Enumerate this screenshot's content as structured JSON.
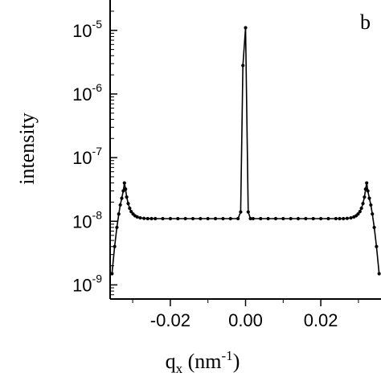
{
  "chart_data": {
    "type": "line",
    "panel_label": "b",
    "xlabel": {
      "base": "q",
      "sub": "x",
      "unit_open": " (nm",
      "unit_sup": "-1",
      "unit_close": ")"
    },
    "ylabel": "intensity",
    "xlim": [
      -0.036,
      0.036
    ],
    "ylim": [
      6e-10,
      3e-05
    ],
    "yscale": "log",
    "xticks": [
      {
        "value": -0.02,
        "label": "-0.02"
      },
      {
        "value": 0.0,
        "label": "0.00"
      },
      {
        "value": 0.02,
        "label": "0.02"
      }
    ],
    "yticks": [
      {
        "value": 1e-05,
        "base": "10",
        "exp": "-5"
      },
      {
        "value": 1e-06,
        "base": "10",
        "exp": "-6"
      },
      {
        "value": 1e-07,
        "base": "10",
        "exp": "-7"
      },
      {
        "value": 1e-08,
        "base": "10",
        "exp": "-8"
      },
      {
        "value": 1e-09,
        "base": "10",
        "exp": "-9"
      }
    ],
    "grid": false,
    "color": "#000000",
    "series": [
      {
        "x": [
          -0.0355,
          -0.0348,
          -0.0342,
          -0.0337,
          -0.0333,
          -0.0329,
          -0.0325,
          -0.0322,
          -0.0319,
          -0.0316,
          -0.0312,
          -0.0308,
          -0.0304,
          -0.0299,
          -0.0294,
          -0.0288,
          -0.028,
          -0.027,
          -0.026,
          -0.025,
          -0.024,
          -0.022,
          -0.02,
          -0.018,
          -0.016,
          -0.014,
          -0.012,
          -0.01,
          -0.008,
          -0.006,
          -0.004,
          -0.002,
          -0.0013,
          -0.0007,
          0.0,
          0.0007,
          0.0013,
          0.002,
          0.004,
          0.006,
          0.008,
          0.01,
          0.012,
          0.014,
          0.016,
          0.018,
          0.02,
          0.022,
          0.024,
          0.025,
          0.026,
          0.027,
          0.028,
          0.0288,
          0.0294,
          0.0299,
          0.0304,
          0.0308,
          0.0312,
          0.0316,
          0.0319,
          0.0322,
          0.0325,
          0.0329,
          0.0333,
          0.0337,
          0.0342,
          0.0348,
          0.0355
        ],
        "y": [
          1.5e-09,
          4e-09,
          8e-09,
          1.3e-08,
          1.8e-08,
          2.3e-08,
          3e-08,
          4e-08,
          3.2e-08,
          2.4e-08,
          1.9e-08,
          1.6e-08,
          1.42e-08,
          1.3e-08,
          1.22e-08,
          1.17e-08,
          1.13e-08,
          1.11e-08,
          1.1e-08,
          1.1e-08,
          1.1e-08,
          1.1e-08,
          1.1e-08,
          1.1e-08,
          1.1e-08,
          1.1e-08,
          1.1e-08,
          1.1e-08,
          1.1e-08,
          1.1e-08,
          1.1e-08,
          1.1e-08,
          1.4e-08,
          2.8e-06,
          1.1e-05,
          1.4e-08,
          1.1e-08,
          1.1e-08,
          1.1e-08,
          1.1e-08,
          1.1e-08,
          1.1e-08,
          1.1e-08,
          1.1e-08,
          1.1e-08,
          1.1e-08,
          1.1e-08,
          1.1e-08,
          1.1e-08,
          1.1e-08,
          1.1e-08,
          1.11e-08,
          1.13e-08,
          1.17e-08,
          1.22e-08,
          1.3e-08,
          1.42e-08,
          1.6e-08,
          1.9e-08,
          2.4e-08,
          3.2e-08,
          4e-08,
          3e-08,
          2.3e-08,
          1.8e-08,
          1.3e-08,
          8e-09,
          4e-09,
          1.5e-09
        ]
      }
    ]
  }
}
